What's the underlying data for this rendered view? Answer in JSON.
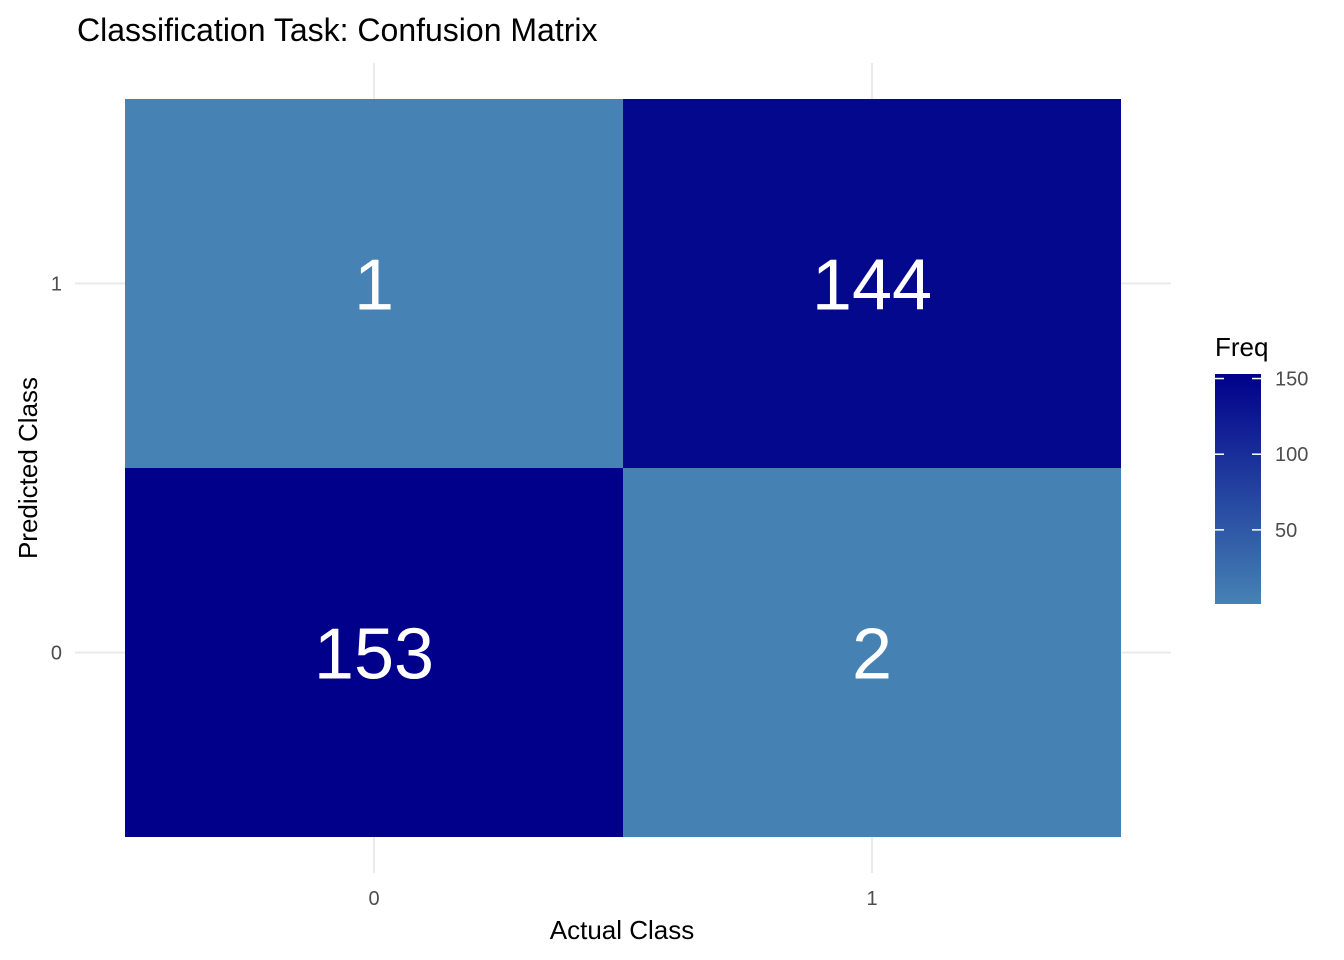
{
  "chart_data": {
    "type": "heatmap",
    "title": "Classification Task: Confusion Matrix",
    "xlabel": "Actual Class",
    "ylabel": "Predicted Class",
    "x_categories": [
      "0",
      "1"
    ],
    "y_categories": [
      "0",
      "1"
    ],
    "cells": [
      {
        "x": "0",
        "y": "1",
        "value": 1,
        "label": "1"
      },
      {
        "x": "1",
        "y": "1",
        "value": 144,
        "label": "144"
      },
      {
        "x": "0",
        "y": "0",
        "value": 153,
        "label": "153"
      },
      {
        "x": "1",
        "y": "0",
        "value": 2,
        "label": "2"
      }
    ],
    "legend": {
      "title": "Freq",
      "placement": "right",
      "value_range": [
        1,
        153
      ],
      "ticks": [
        50,
        100,
        150
      ],
      "tick_labels": [
        "50",
        "100",
        "150"
      ],
      "low_color": "#4682b4",
      "high_color": "#00008b"
    },
    "grid": true
  }
}
